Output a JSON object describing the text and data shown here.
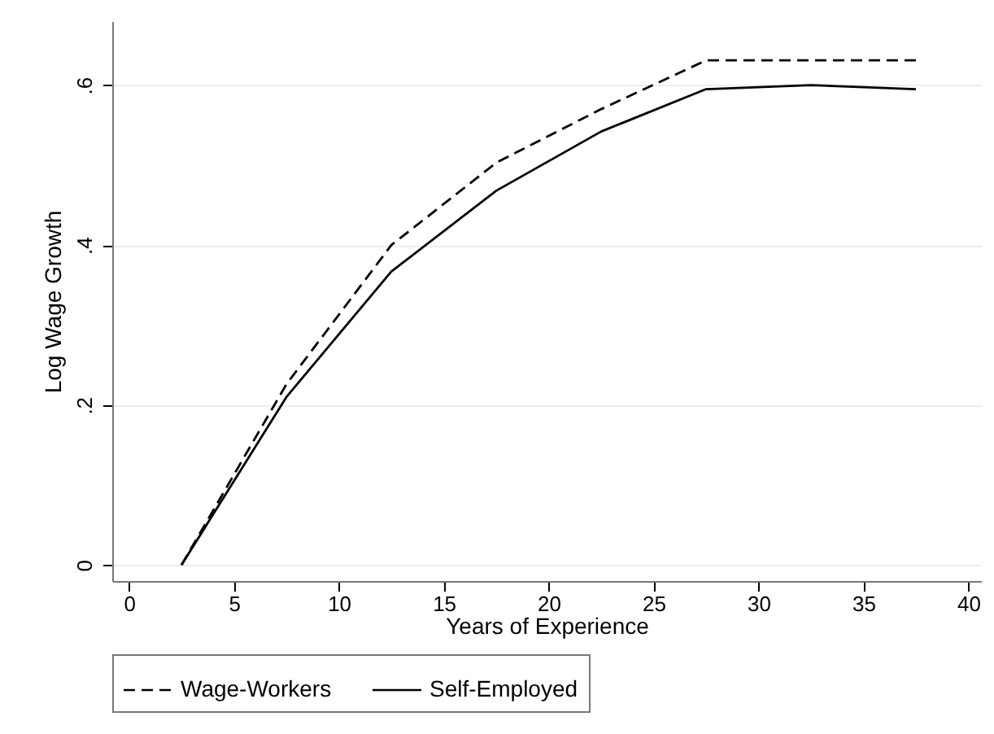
{
  "chart_data": {
    "type": "line",
    "xlabel": "Years of Experience",
    "ylabel": "Log Wage Growth",
    "x": [
      2.5,
      7.5,
      12.5,
      17.5,
      22.5,
      27.5,
      32.5,
      37.5
    ],
    "series": [
      {
        "name": "Wage-Workers",
        "color": "#000000",
        "line_style": "dashed",
        "values": [
          0,
          0.226,
          0.4,
          0.503,
          0.57,
          0.631,
          0.631,
          0.631
        ]
      },
      {
        "name": "Self-Employed",
        "color": "#000000",
        "line_style": "solid",
        "values": [
          0,
          0.21,
          0.367,
          0.468,
          0.542,
          0.595,
          0.6,
          0.595
        ]
      }
    ],
    "xlim": [
      -0.8,
      40.6
    ],
    "xticks": [
      0,
      5,
      10,
      15,
      20,
      25,
      30,
      35,
      40
    ],
    "ylim": [
      -0.02,
      0.68
    ],
    "yticks": [
      {
        "value": 0,
        "label": "0"
      },
      {
        "value": 0.2,
        "label": ".2"
      },
      {
        "value": 0.4,
        "label": ".4"
      },
      {
        "value": 0.6,
        "label": ".6"
      }
    ],
    "grid": "y",
    "legend": "bottom",
    "marker": "none"
  }
}
